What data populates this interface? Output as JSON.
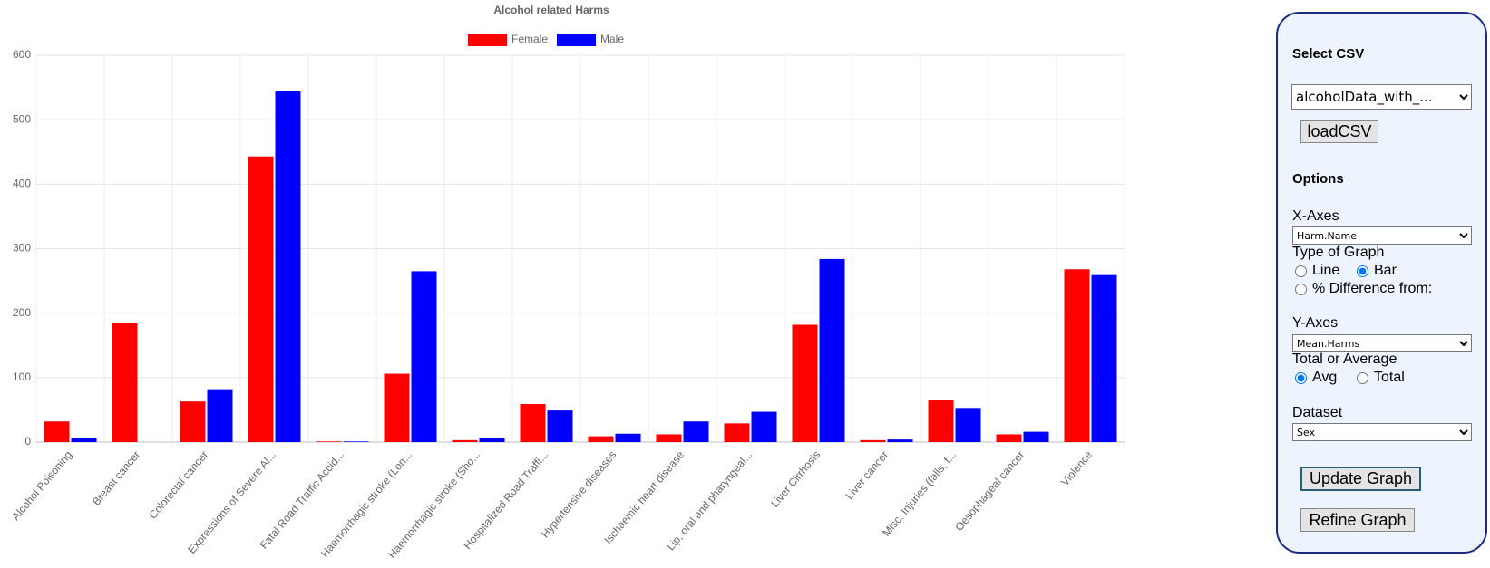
{
  "chart_data": {
    "type": "bar",
    "title": "Alcohol related Harms",
    "categories": [
      "Alcohol Poisoning",
      "Breast cancer",
      "Colorectal cancer",
      "Expressions of Severe Al...",
      "Fatal Road Traffic Accid...",
      "Haemorrhagic stroke (Lon...",
      "Haemorrhagic stroke (Sho...",
      "Hospitalized Road Traffi...",
      "Hypertensive diseases",
      "Ischaemic heart disease",
      "Lip, oral and pharyngeal...",
      "Liver Cirrhosis",
      "Liver cancer",
      "Misc. Injuries (falls, f...",
      "Oesophageal cancer",
      "Violence"
    ],
    "series": [
      {
        "name": "Female",
        "color": "#ff0000",
        "values": [
          32,
          185,
          63,
          443,
          1,
          106,
          3,
          59,
          9,
          12,
          29,
          182,
          3,
          65,
          12,
          268
        ]
      },
      {
        "name": "Male",
        "color": "#0000ff",
        "values": [
          7,
          0,
          82,
          544,
          1,
          265,
          6,
          49,
          13,
          32,
          47,
          284,
          4,
          53,
          16,
          259
        ]
      }
    ],
    "ylim": [
      0,
      600
    ],
    "yticks": [
      0,
      100,
      200,
      300,
      400,
      500,
      600
    ],
    "grid": true,
    "legend": "top"
  },
  "panel": {
    "select_csv": {
      "label": "Select CSV",
      "value": "alcoholData_with_...",
      "button": "loadCSV"
    },
    "options": "Options",
    "x_axes": {
      "label": "X-Axes",
      "value": "Harm.Name"
    },
    "graph_type": {
      "label": "Type of Graph",
      "options": [
        {
          "label": "Line",
          "checked": false
        },
        {
          "label": "Bar",
          "checked": true
        },
        {
          "label": "% Difference from:",
          "checked": false
        }
      ]
    },
    "y_axes": {
      "label": "Y-Axes",
      "value": "Mean.Harms"
    },
    "aggregate": {
      "label": "Total or Average",
      "options": [
        {
          "label": "Avg",
          "checked": true
        },
        {
          "label": "Total",
          "checked": false
        }
      ]
    },
    "dataset": {
      "label": "Dataset",
      "value": "Sex"
    },
    "update_button": "Update Graph",
    "refine_button": "Refine Graph"
  }
}
